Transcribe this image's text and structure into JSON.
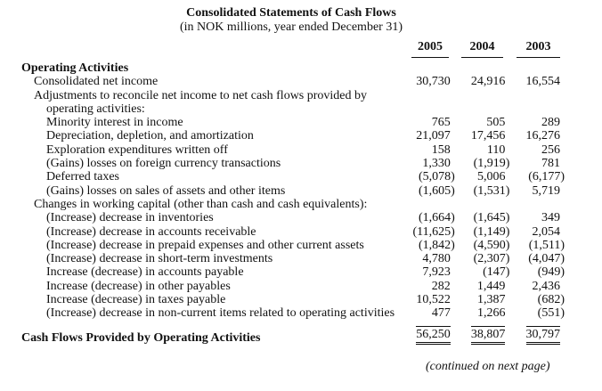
{
  "header": {
    "title": "Consolidated Statements of Cash Flows",
    "subtitle": "(in NOK millions, year ended December 31)"
  },
  "columns": [
    "2005",
    "2004",
    "2003"
  ],
  "section": {
    "heading": "Operating Activities",
    "net_income": {
      "label": "Consolidated net income",
      "values": [
        "30,730",
        "24,916",
        "16,554"
      ]
    },
    "adjustments": {
      "heading": "Adjustments to reconcile net income to net cash flows provided by operating activities:",
      "rows": [
        {
          "label": "Minority interest in income",
          "values": [
            "765",
            "505",
            "289"
          ]
        },
        {
          "label": "Depreciation, depletion, and amortization",
          "values": [
            "21,097",
            "17,456",
            "16,276"
          ]
        },
        {
          "label": "Exploration expenditures written off",
          "values": [
            "158",
            "110",
            "256"
          ]
        },
        {
          "label": "(Gains) losses on foreign currency transactions",
          "values": [
            "1,330",
            "(1,919)",
            "781"
          ]
        },
        {
          "label": "Deferred taxes",
          "values": [
            "(5,078)",
            "5,006",
            "(6,177)"
          ]
        },
        {
          "label": "(Gains) losses on sales of assets and other items",
          "values": [
            "(1,605)",
            "(1,531)",
            "5,719"
          ]
        }
      ]
    },
    "working_capital": {
      "heading": "Changes in working capital (other than cash and cash equivalents):",
      "rows": [
        {
          "label": "(Increase) decrease in inventories",
          "values": [
            "(1,664)",
            "(1,645)",
            "349"
          ]
        },
        {
          "label": "(Increase) decrease in accounts receivable",
          "values": [
            "(11,625)",
            "(1,149)",
            "2,054"
          ]
        },
        {
          "label": "(Increase) decrease in prepaid expenses and other current assets",
          "values": [
            "(1,842)",
            "(4,590)",
            "(1,511)"
          ]
        },
        {
          "label": "(Increase) decrease in short-term investments",
          "values": [
            "4,780",
            "(2,307)",
            "(4,047)"
          ]
        },
        {
          "label": "Increase (decrease) in accounts payable",
          "values": [
            "7,923",
            "(147)",
            "(949)"
          ]
        },
        {
          "label": "Increase (decrease) in other payables",
          "values": [
            "282",
            "1,449",
            "2,436"
          ]
        },
        {
          "label": "Increase (decrease) in taxes payable",
          "values": [
            "10,522",
            "1,387",
            "(682)"
          ]
        },
        {
          "label": "(Increase) decrease in non-current items related to operating activities",
          "values": [
            "477",
            "1,266",
            "(551)"
          ]
        }
      ]
    }
  },
  "total": {
    "label": "Cash Flows Provided by Operating Activities",
    "values": [
      "56,250",
      "38,807",
      "30,797"
    ]
  },
  "footer": "(continued on next page)"
}
